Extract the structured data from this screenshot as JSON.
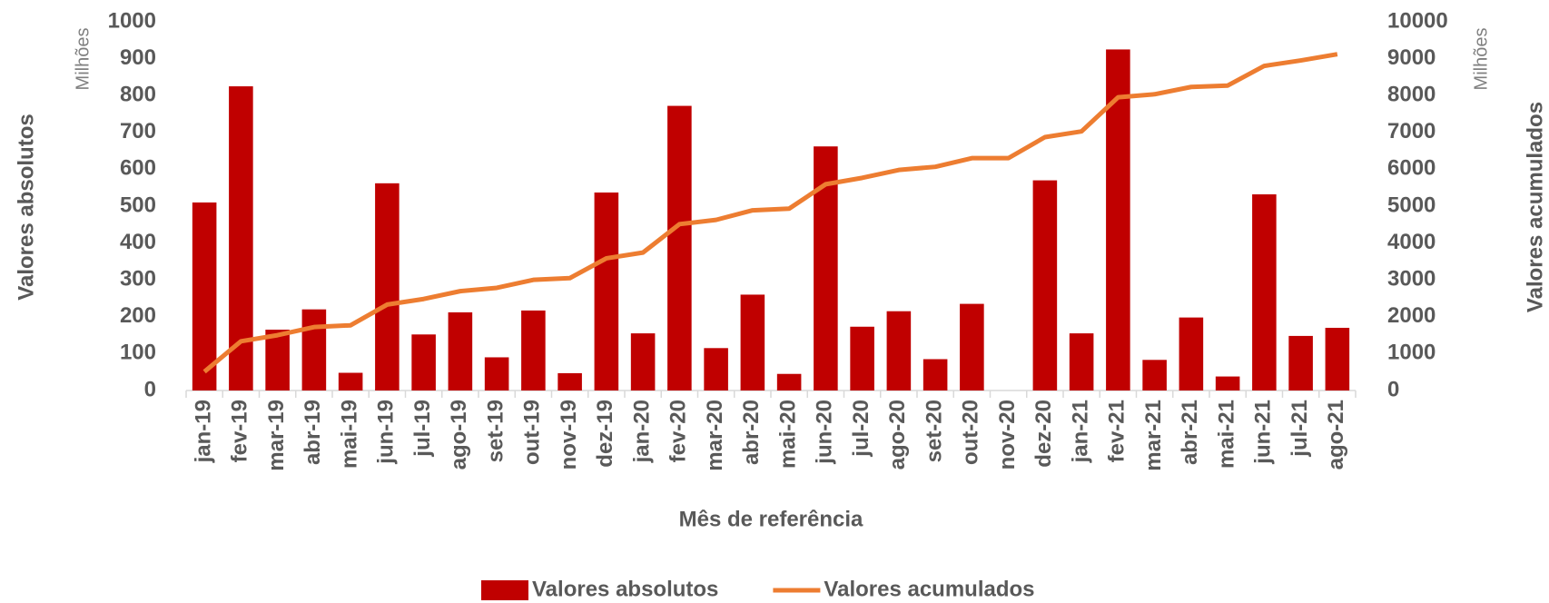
{
  "chart_data": {
    "type": "combo",
    "x_label": "Mês de referência",
    "y_label": "Valores absolutos",
    "y2_label": "Valores acumulados",
    "y_unit": "Milhões",
    "y2_unit": "Milhões",
    "categories": [
      "jan-19",
      "fev-19",
      "mar-19",
      "abr-19",
      "mai-19",
      "jun-19",
      "jul-19",
      "ago-19",
      "set-19",
      "out-19",
      "nov-19",
      "dez-19",
      "jan-20",
      "fev-20",
      "mar-20",
      "abr-20",
      "mai-20",
      "jun-20",
      "jul-20",
      "ago-20",
      "set-20",
      "out-20",
      "nov-20",
      "dez-20",
      "jan-21",
      "fev-21",
      "mar-21",
      "abr-21",
      "mai-21",
      "jun-21",
      "jul-21",
      "ago-21"
    ],
    "series": [
      {
        "name": "Valores absolutos",
        "type": "bar",
        "color": "#c00000",
        "values": [
          510,
          825,
          165,
          220,
          48,
          562,
          152,
          212,
          90,
          217,
          47,
          537,
          155,
          772,
          115,
          260,
          45,
          662,
          173,
          215,
          85,
          235,
          0,
          570,
          155,
          925,
          83,
          198,
          38,
          532,
          148,
          170
        ]
      },
      {
        "name": "Valores acumulados",
        "type": "line",
        "axis": "y2",
        "color": "#ed7d31",
        "values": [
          510,
          1335,
          1500,
          1720,
          1768,
          2330,
          2482,
          2694,
          2784,
          3001,
          3048,
          3585,
          3740,
          4512,
          4627,
          4887,
          4932,
          5594,
          5767,
          5982,
          6067,
          6302,
          6302,
          6872,
          7027,
          7952,
          8035,
          8233,
          8271,
          8803,
          8951,
          9121
        ]
      }
    ],
    "ylim": [
      0,
      1000
    ],
    "yticks": [
      0,
      100,
      200,
      300,
      400,
      500,
      600,
      700,
      800,
      900,
      1000
    ],
    "y2lim": [
      0,
      10000
    ],
    "y2ticks": [
      0,
      1000,
      2000,
      3000,
      4000,
      5000,
      6000,
      7000,
      8000,
      9000,
      10000
    ],
    "legend": "bottom"
  }
}
